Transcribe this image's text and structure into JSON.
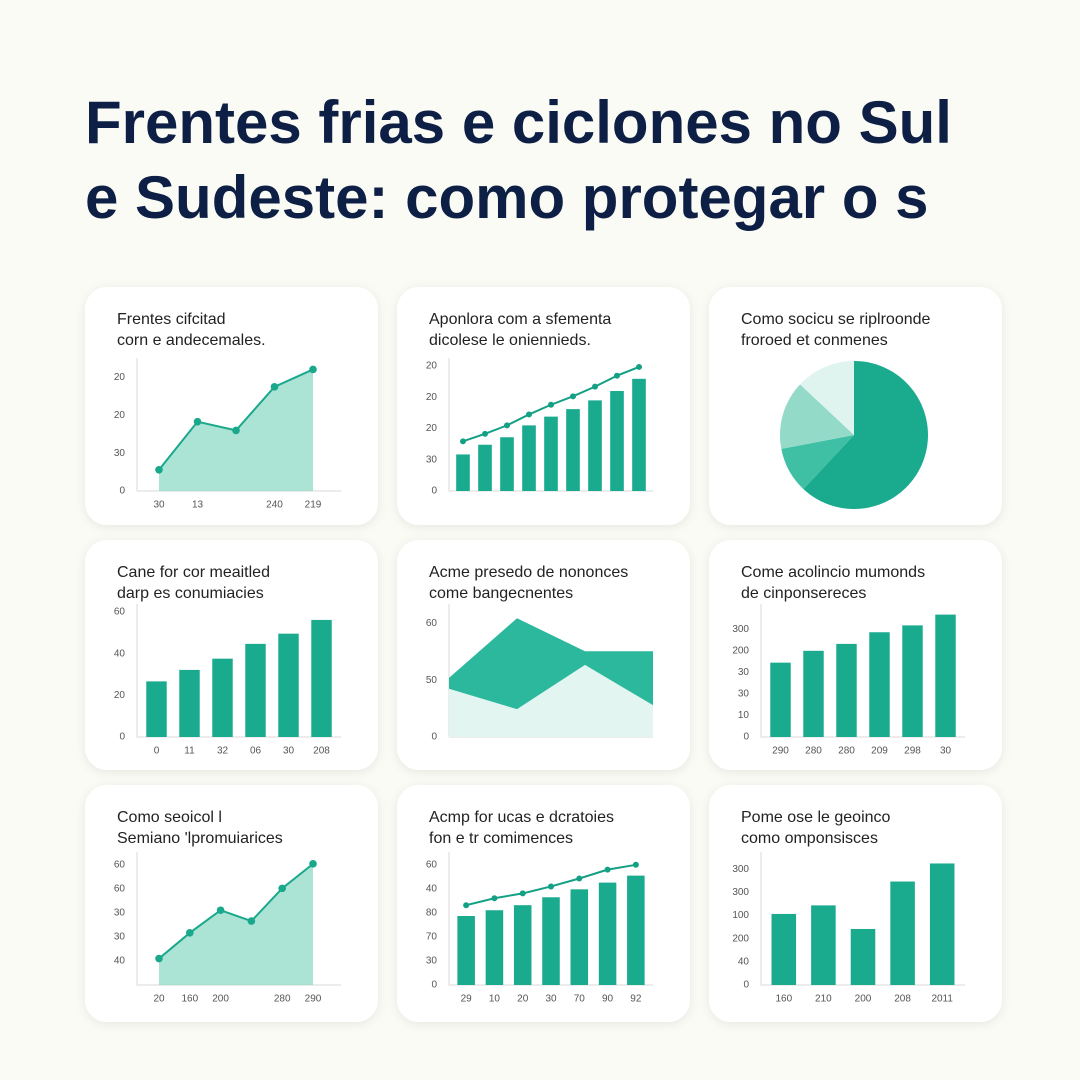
{
  "title": [
    "Frentes frias e ciclones no Sul",
    "e Sudeste: como protegar o s"
  ],
  "chart_data": [
    {
      "type": "area",
      "title": [
        "Frentes cifcitad",
        "corn e andecemales."
      ],
      "markers": true,
      "categories": [
        "30",
        "13",
        null,
        "240",
        "219"
      ],
      "series": [
        {
          "color": "#1aa88d",
          "fill": "#8fd9c6",
          "values": [
            0.56,
            1.83,
            1.6,
            2.75,
            3.21
          ]
        }
      ],
      "ylim": [
        0,
        3.3
      ],
      "yticks": [
        0,
        {
          "value": 1,
          "label": "30"
        },
        {
          "value": 2,
          "label": "20"
        },
        {
          "value": 3,
          "label": "20"
        }
      ]
    },
    {
      "type": "combo",
      "title": [
        "Aponlora com a sfementa",
        "dicolese le oniennieds."
      ],
      "categories": [
        null,
        null,
        null,
        null,
        null,
        null,
        null,
        null,
        null
      ],
      "series": [
        {
          "type": "bar",
          "color": "#1aab8f",
          "values": [
            1.17,
            1.48,
            1.72,
            2.1,
            2.38,
            2.62,
            2.9,
            3.2,
            3.59
          ]
        },
        {
          "type": "line",
          "color": "#14a085",
          "values": [
            1.59,
            1.83,
            2.1,
            2.45,
            2.76,
            3.03,
            3.34,
            3.69,
            3.97
          ]
        }
      ],
      "ylim": [
        0,
        4
      ],
      "yticks": [
        0,
        {
          "value": 1,
          "label": "30"
        },
        {
          "value": 2,
          "label": "20"
        },
        {
          "value": 3,
          "label": "20"
        },
        {
          "value": 4,
          "label": "20"
        }
      ]
    },
    {
      "type": "pie",
      "title": [
        "Como socicu se riplroonde",
        "froroed et conmenes"
      ],
      "values": [
        62,
        10,
        15,
        13
      ],
      "colors": [
        "#1aab8f",
        "#3fc0a5",
        "#93dac9",
        "#e0f4ef"
      ]
    },
    {
      "type": "bar",
      "title": [
        "Cane for cor meaitled",
        "darp es conumiacies"
      ],
      "categories": [
        "0",
        "11",
        "32",
        "06",
        "30",
        "208"
      ],
      "series": [
        {
          "color": "#1aab8f",
          "values": [
            26.7,
            32.2,
            37.6,
            44.7,
            49.6,
            56.2
          ]
        }
      ],
      "ylim": [
        0,
        60
      ],
      "yticks": [
        0,
        20,
        40,
        60
      ]
    },
    {
      "type": "area",
      "title": [
        "Acme presedo de nononces",
        "come bangecnentes"
      ],
      "markers": false,
      "categories": [
        null,
        null,
        null,
        null
      ],
      "series": [
        {
          "color": "#2bb89c",
          "fill": "#2bb89c",
          "values": [
            1.04,
            2.09,
            1.51,
            1.51
          ]
        },
        {
          "color": "#e3f5f0",
          "fill": "#e3f5f0",
          "values": [
            0.85,
            0.49,
            1.27,
            0.56
          ]
        }
      ],
      "ylim": [
        0,
        2.2
      ],
      "yticks": [
        0,
        {
          "value": 1,
          "label": "50"
        },
        {
          "value": 2,
          "label": "60"
        }
      ]
    },
    {
      "type": "bar",
      "title": [
        "Come acolincio mumonds",
        "de cinponsereces"
      ],
      "categories": [
        "290",
        "280",
        "280",
        "209",
        "298",
        "30"
      ],
      "series": [
        {
          "color": "#1aab8f",
          "values": [
            3.45,
            4.0,
            4.32,
            4.86,
            5.18,
            5.68
          ]
        }
      ],
      "ylim": [
        0,
        5.8
      ],
      "yticks": [
        0,
        {
          "value": 1,
          "label": "10"
        },
        {
          "value": 2,
          "label": "30"
        },
        {
          "value": 3,
          "label": "30"
        },
        {
          "value": 4,
          "label": "200"
        },
        {
          "value": 5,
          "label": "300"
        }
      ]
    },
    {
      "type": "area",
      "title": [
        "Como seoicol l",
        "Semiano 'lpromuiarices"
      ],
      "markers": true,
      "categories": [
        "20",
        "160",
        "200",
        null,
        "280",
        "290"
      ],
      "series": [
        {
          "color": "#1aa88d",
          "fill": "#8fd9c6",
          "values": [
            1.1,
            2.17,
            3.11,
            2.66,
            4.02,
            5.04
          ]
        }
      ],
      "ylim": [
        0,
        5.2
      ],
      "yticks": [
        {
          "value": 1,
          "label": "40"
        },
        {
          "value": 2,
          "label": "30"
        },
        {
          "value": 3,
          "label": "30"
        },
        {
          "value": 4,
          "label": "60"
        },
        {
          "value": 5,
          "label": "60"
        }
      ]
    },
    {
      "type": "combo",
      "title": [
        "Acmp for ucas e dcratoies",
        "fon e tr comimences"
      ],
      "categories": [
        "29",
        "10",
        "20",
        "30",
        "70",
        "90",
        "92"
      ],
      "series": [
        {
          "type": "bar",
          "color": "#1aab8f",
          "values": [
            2.87,
            3.11,
            3.32,
            3.65,
            3.98,
            4.26,
            4.55
          ]
        },
        {
          "type": "line",
          "color": "#14a085",
          "values": [
            3.32,
            3.61,
            3.81,
            4.1,
            4.43,
            4.8,
            5.0
          ]
        }
      ],
      "ylim": [
        0,
        5.2
      ],
      "yticks": [
        0,
        {
          "value": 1,
          "label": "30"
        },
        {
          "value": 2,
          "label": "70"
        },
        {
          "value": 3,
          "label": "80"
        },
        {
          "value": 4,
          "label": "40"
        },
        {
          "value": 5,
          "label": "60"
        }
      ]
    },
    {
      "type": "bar",
      "title": [
        "Pome ose le geoinco",
        "como omponsisces"
      ],
      "categories": [
        "160",
        "210",
        "200",
        "208",
        "2011"
      ],
      "series": [
        {
          "color": "#1aab8f",
          "values": [
            3.07,
            3.44,
            2.42,
            4.47,
            5.25
          ]
        }
      ],
      "ylim": [
        0,
        5.4
      ],
      "yticks": [
        0,
        {
          "value": 1,
          "label": "40"
        },
        {
          "value": 2,
          "label": "200"
        },
        {
          "value": 3,
          "label": "100"
        },
        {
          "value": 4,
          "label": "300"
        },
        {
          "value": 5,
          "label": "300"
        }
      ]
    }
  ]
}
